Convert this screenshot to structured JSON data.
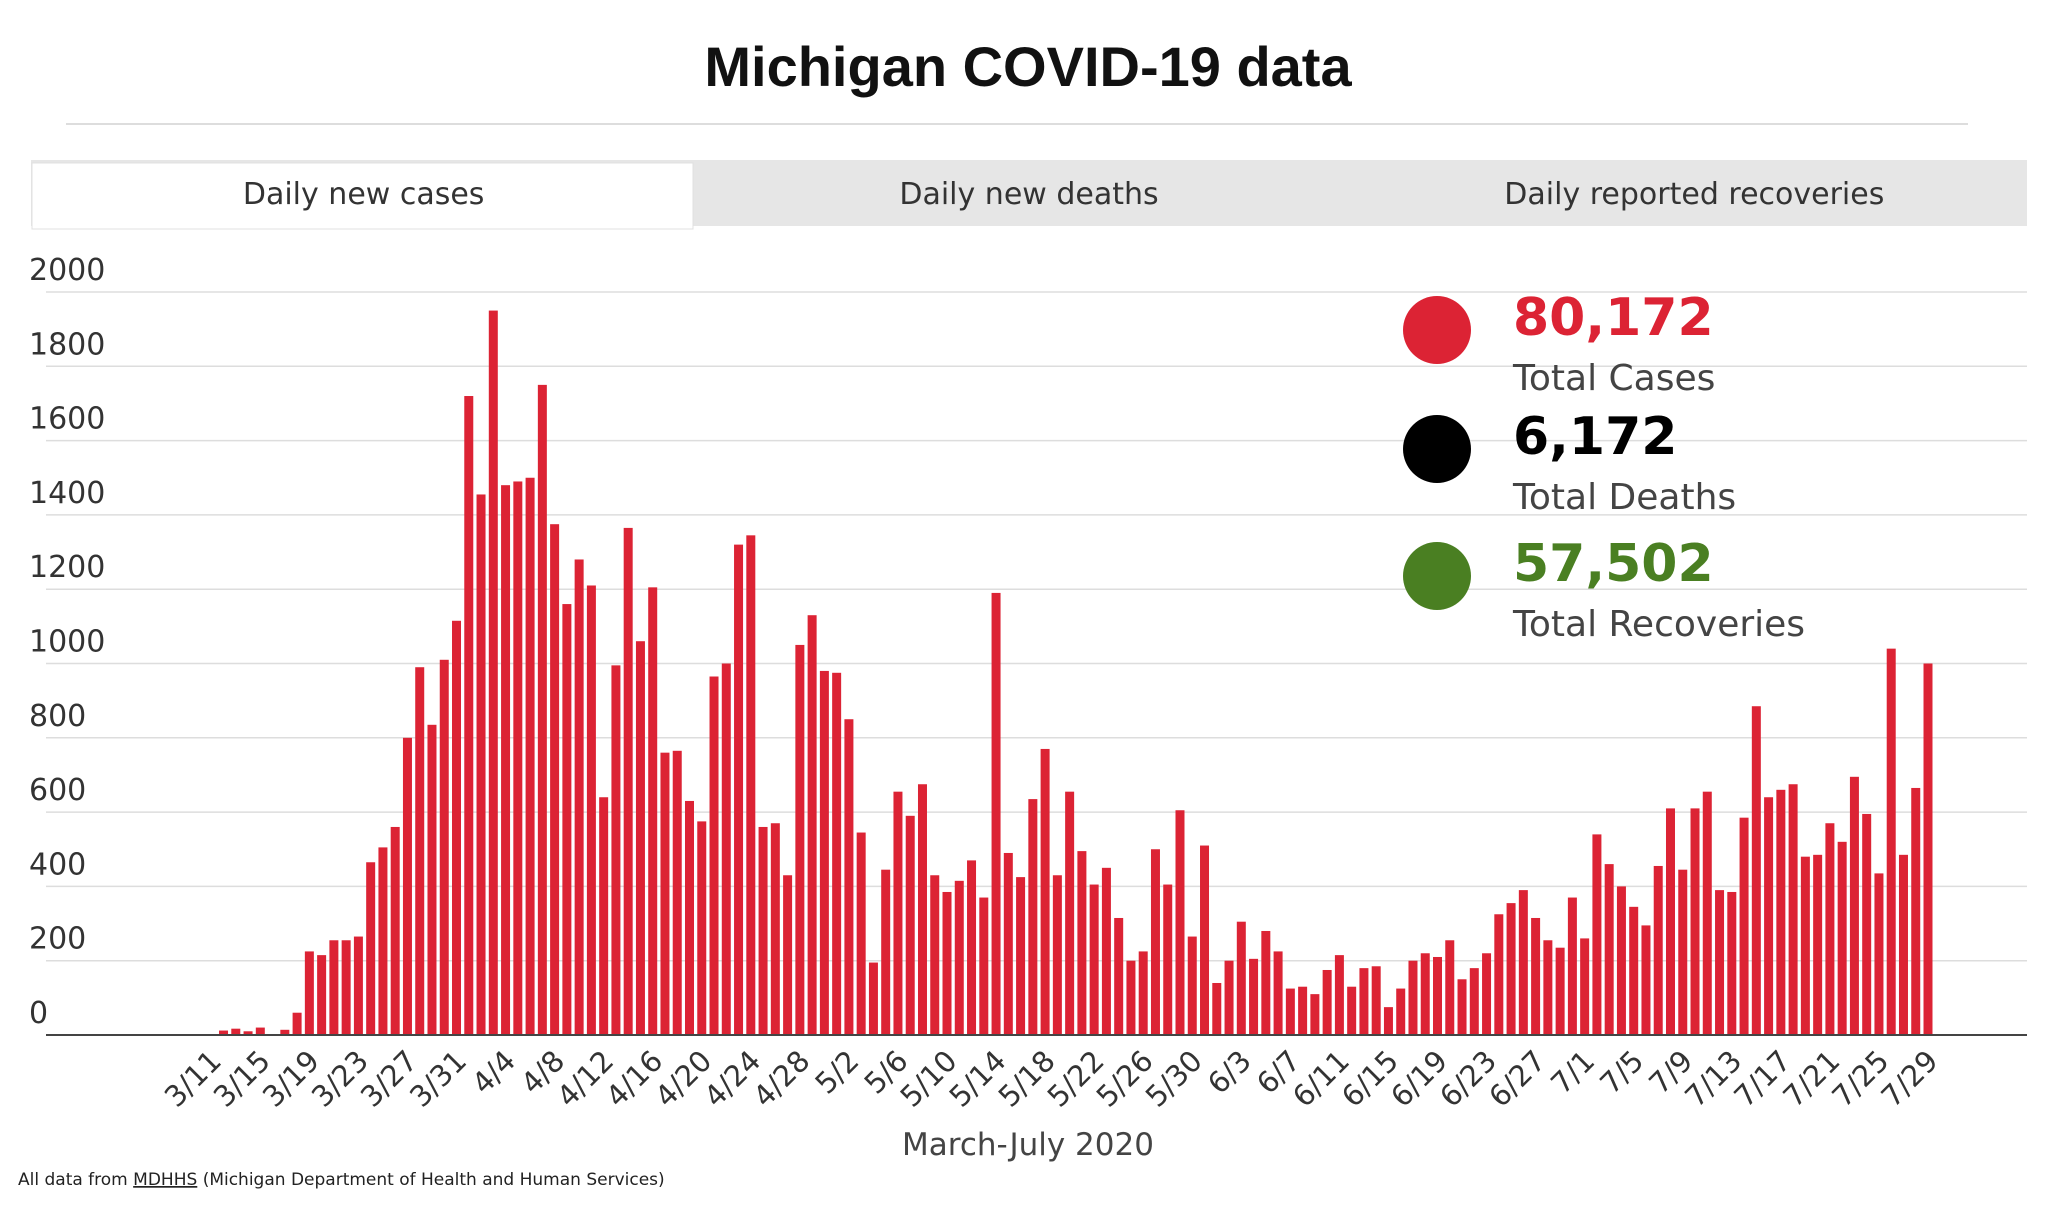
{
  "chart_data": {
    "type": "bar",
    "title": "Michigan COVID-19 data",
    "x_label": "March-July 2020",
    "color": "#dc2334",
    "categories": [
      null,
      "3/11",
      null,
      null,
      null,
      "3/15",
      null,
      null,
      null,
      "3/19",
      null,
      null,
      null,
      "3/23",
      null,
      null,
      null,
      "3/27",
      null,
      null,
      null,
      "3/31",
      null,
      null,
      null,
      "4/4",
      null,
      null,
      null,
      "4/8",
      null,
      null,
      null,
      "4/12",
      null,
      null,
      null,
      "4/16",
      null,
      null,
      null,
      "4/20",
      null,
      null,
      null,
      "4/24",
      null,
      null,
      null,
      "4/28",
      null,
      null,
      null,
      "5/2",
      null,
      null,
      null,
      "5/6",
      null,
      null,
      null,
      "5/10",
      null,
      null,
      null,
      "5/14",
      null,
      null,
      null,
      "5/18",
      null,
      null,
      null,
      "5/22",
      null,
      null,
      null,
      "5/26",
      null,
      null,
      null,
      "5/30",
      null,
      null,
      null,
      "6/3",
      null,
      null,
      null,
      "6/7",
      null,
      null,
      null,
      "6/11",
      null,
      null,
      null,
      "6/15",
      null,
      null,
      null,
      "6/19",
      null,
      null,
      null,
      "6/23",
      null,
      null,
      null,
      "6/27",
      null,
      null,
      null,
      "7/1",
      null,
      null,
      null,
      "7/5",
      null,
      null,
      null,
      "7/9",
      null,
      null,
      null,
      "7/13",
      null,
      null,
      null,
      "7/17",
      null,
      null,
      null,
      "7/21",
      null,
      null,
      null,
      "7/25",
      null,
      null,
      null,
      "7/29"
    ],
    "values": [
      2,
      0,
      12,
      17,
      10,
      20,
      0,
      14,
      60,
      225,
      215,
      255,
      255,
      265,
      465,
      505,
      560,
      800,
      990,
      835,
      1010,
      1115,
      1720,
      1455,
      1950,
      1480,
      1490,
      1500,
      1750,
      1375,
      1160,
      1280,
      1210,
      640,
      995,
      1365,
      1060,
      1205,
      760,
      765,
      630,
      575,
      965,
      1000,
      1320,
      1345,
      560,
      570,
      430,
      1050,
      1130,
      980,
      975,
      850,
      545,
      195,
      445,
      655,
      590,
      675,
      430,
      385,
      415,
      470,
      370,
      1190,
      490,
      425,
      635,
      770,
      430,
      655,
      495,
      405,
      450,
      315,
      200,
      225,
      500,
      405,
      605,
      265,
      510,
      140,
      200,
      305,
      205,
      280,
      225,
      125,
      130,
      110,
      175,
      215,
      130,
      180,
      185,
      75,
      125,
      200,
      220,
      210,
      255,
      150,
      180,
      220,
      325,
      355,
      390,
      315,
      255,
      235,
      370,
      260,
      540,
      460,
      400,
      345,
      295,
      455,
      610,
      445,
      610,
      655,
      390,
      385,
      585,
      885,
      640,
      660,
      675,
      480,
      485,
      570,
      520,
      695,
      595,
      435,
      1040,
      485,
      665,
      1000
    ],
    "ylim": [
      0,
      2000
    ],
    "yticks": [
      0,
      200,
      400,
      600,
      800,
      1000,
      1200,
      1400,
      1600,
      1800,
      2000
    ],
    "grid": true
  },
  "tabs": [
    "Daily new cases",
    "Daily new deaths",
    "Daily reported recoveries"
  ],
  "stats": [
    {
      "value": "80,172",
      "label": "Total Cases",
      "color": "#dc2334"
    },
    {
      "value": "6,172",
      "label": "Total Deaths",
      "color": "#000000"
    },
    {
      "value": "57,502",
      "label": "Total Recoveries",
      "color": "#4a7f22"
    }
  ],
  "footer": {
    "prefix": "All data from",
    "link": "MDHHS",
    "suffix": "(Michigan Department of Health and Human Services)"
  }
}
